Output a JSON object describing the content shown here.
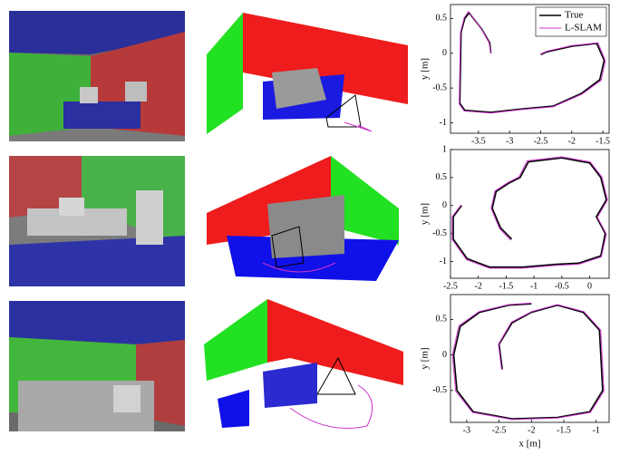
{
  "chart_data": [
    {
      "type": "line",
      "ylabel": "y [m]",
      "legend": "upper right",
      "xlim": [
        -3.95,
        -1.4
      ],
      "xticks": [
        -3.5,
        -3,
        -2.5,
        -2,
        -1.5
      ],
      "ylim": [
        -1.15,
        0.7
      ],
      "yticks": [
        -1,
        -0.5,
        0,
        0.5
      ],
      "series": [
        {
          "name": "True",
          "color": "#000000",
          "x": [
            -3.3,
            -3.32,
            -3.45,
            -3.65,
            -3.72,
            -3.78,
            -3.8,
            -3.72,
            -3.3,
            -2.8,
            -2.3,
            -1.85,
            -1.55,
            -1.48,
            -1.6,
            -2.0,
            -2.4,
            -2.5
          ],
          "values": [
            0.0,
            0.15,
            0.35,
            0.58,
            0.5,
            0.3,
            -0.72,
            -0.82,
            -0.85,
            -0.8,
            -0.76,
            -0.58,
            -0.38,
            -0.1,
            0.14,
            0.1,
            0.02,
            -0.02
          ]
        },
        {
          "name": "L-SLAM",
          "color": "#cc33cc",
          "x": [
            -3.3,
            -3.33,
            -3.46,
            -3.66,
            -3.73,
            -3.79,
            -3.81,
            -3.73,
            -3.3,
            -2.8,
            -2.3,
            -1.84,
            -1.53,
            -1.46,
            -1.58,
            -2.0,
            -2.4,
            -2.5
          ],
          "values": [
            0.0,
            0.15,
            0.36,
            0.6,
            0.51,
            0.3,
            -0.73,
            -0.83,
            -0.86,
            -0.81,
            -0.77,
            -0.59,
            -0.39,
            -0.11,
            0.15,
            0.11,
            0.03,
            -0.01
          ]
        }
      ]
    },
    {
      "type": "line",
      "ylabel": "y [m]",
      "xlim": [
        -2.5,
        0.35
      ],
      "xticks": [
        -2.5,
        -2,
        -1.5,
        -1,
        -0.5,
        0
      ],
      "ylim": [
        -1.3,
        1
      ],
      "yticks": [
        -1,
        -0.5,
        0,
        0.5,
        1
      ],
      "series": [
        {
          "color": "#000000",
          "x": [
            -1.4,
            -1.6,
            -1.75,
            -1.68,
            -1.45,
            -1.25,
            -1.1,
            -0.5,
            0.0,
            0.2,
            0.3,
            0.12,
            0.28,
            0.2,
            -0.2,
            -0.6,
            -1.2,
            -1.8,
            -2.2,
            -2.45,
            -2.45,
            -2.3
          ],
          "values": [
            -0.6,
            -0.4,
            -0.05,
            0.25,
            0.4,
            0.5,
            0.78,
            0.85,
            0.76,
            0.5,
            0.1,
            -0.2,
            -0.5,
            -0.9,
            -1.03,
            -1.05,
            -1.1,
            -1.1,
            -0.95,
            -0.6,
            -0.2,
            0.0
          ]
        },
        {
          "color": "#cc33cc",
          "x": [
            -1.42,
            -1.62,
            -1.77,
            -1.7,
            -1.47,
            -1.27,
            -1.12,
            -0.5,
            0.01,
            0.22,
            0.32,
            0.14,
            0.3,
            0.21,
            -0.2,
            -0.6,
            -1.2,
            -1.8,
            -2.21,
            -2.47,
            -2.47,
            -2.31
          ],
          "values": [
            -0.62,
            -0.41,
            -0.05,
            0.26,
            0.41,
            0.51,
            0.8,
            0.87,
            0.78,
            0.51,
            0.1,
            -0.21,
            -0.51,
            -0.92,
            -1.05,
            -1.07,
            -1.12,
            -1.12,
            -0.97,
            -0.61,
            -0.2,
            0.01
          ]
        }
      ]
    },
    {
      "type": "line",
      "ylabel": "y [m]",
      "xlabel": "x [m]",
      "xlim": [
        -3.25,
        -0.8
      ],
      "xticks": [
        -3,
        -2.5,
        -2,
        -1.5,
        -1
      ],
      "ylim": [
        -0.95,
        0.85
      ],
      "yticks": [
        -0.5,
        0,
        0.5
      ],
      "series": [
        {
          "color": "#000000",
          "x": [
            -2.45,
            -2.5,
            -2.3,
            -2.0,
            -1.6,
            -1.2,
            -0.95,
            -0.9,
            -1.1,
            -1.6,
            -2.3,
            -2.9,
            -3.15,
            -3.2,
            -3.1,
            -2.8,
            -2.35,
            -2.0
          ],
          "values": [
            -0.2,
            0.15,
            0.45,
            0.6,
            0.7,
            0.6,
            0.35,
            -0.5,
            -0.8,
            -0.88,
            -0.9,
            -0.8,
            -0.5,
            0.0,
            0.4,
            0.6,
            0.7,
            0.72
          ]
        },
        {
          "color": "#cc33cc",
          "x": [
            -2.46,
            -2.51,
            -2.31,
            -2.0,
            -1.6,
            -1.19,
            -0.93,
            -0.88,
            -1.09,
            -1.6,
            -2.3,
            -2.91,
            -3.17,
            -3.22,
            -3.12,
            -2.81,
            -2.35,
            -2.0
          ],
          "values": [
            -0.21,
            0.15,
            0.46,
            0.61,
            0.71,
            0.61,
            0.35,
            -0.51,
            -0.81,
            -0.89,
            -0.91,
            -0.81,
            -0.51,
            0.0,
            0.41,
            0.61,
            0.71,
            0.73
          ]
        }
      ]
    }
  ]
}
